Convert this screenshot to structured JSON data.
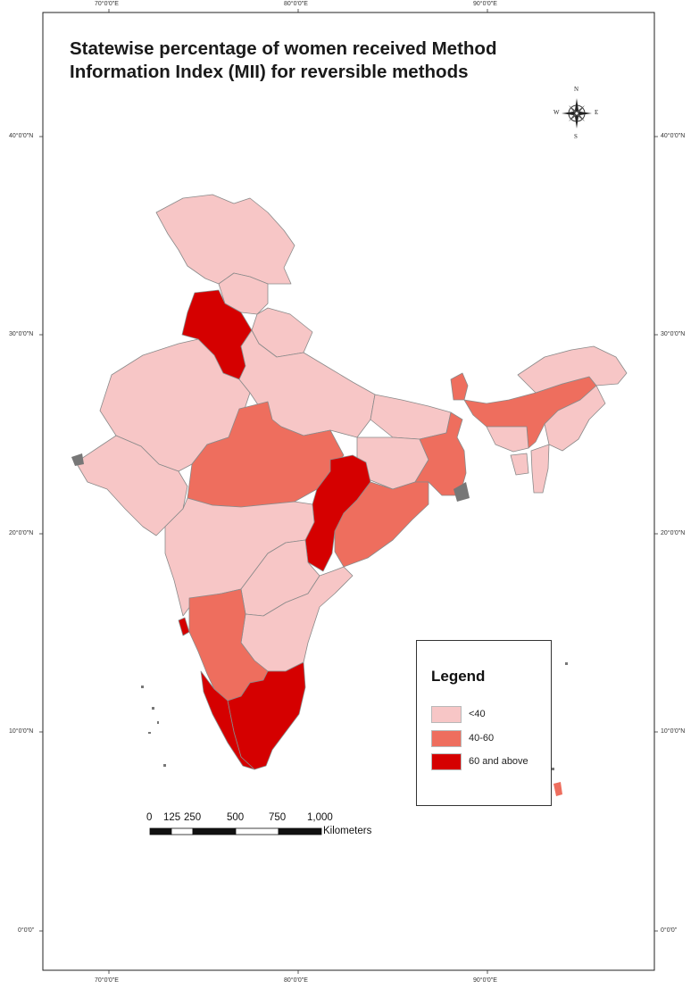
{
  "map": {
    "title_line1": "Statewise percentage of women received Method",
    "title_line2": "Information Index (MII) for reversible methods",
    "grid": {
      "lon_labels": [
        "70°0'0\"E",
        "80°0'0\"E",
        "90°0'0\"E"
      ],
      "lat_labels": [
        "40°0'0\"N",
        "30°0'0\"N",
        "20°0'0\"N",
        "10°0'0\"N",
        "0°0'0\""
      ]
    },
    "compass": {
      "n": "N",
      "s": "S",
      "e": "E",
      "w": "W"
    },
    "legend": {
      "title": "Legend",
      "items": [
        {
          "label": "<40",
          "color": "#f7c6c6"
        },
        {
          "label": "40-60",
          "color": "#ee6e5e"
        },
        {
          "label": "60 and above",
          "color": "#d50000"
        }
      ]
    },
    "scale_bar": {
      "labels": [
        "0",
        "125",
        "250",
        "500",
        "750",
        "1,000"
      ],
      "unit": "Kilometers"
    },
    "colors": {
      "low": "#f7c6c6",
      "mid": "#ee6e5e",
      "high": "#d50000",
      "border": "#7a7a7a",
      "nodata": "#777777"
    }
  }
}
